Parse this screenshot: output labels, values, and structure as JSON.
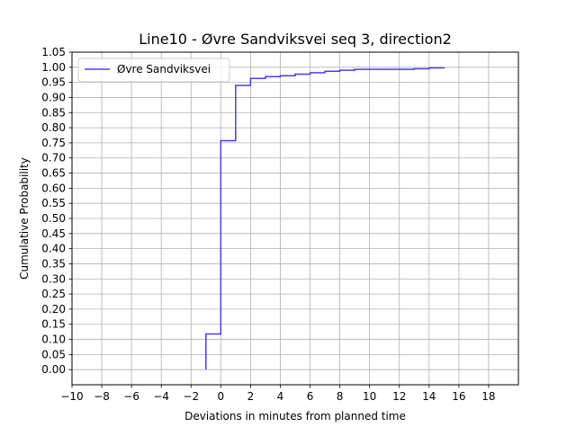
{
  "chart_data": {
    "type": "line",
    "title": "Line10 - Øvre Sandviksvei seq 3, direction2",
    "xlabel": "Deviations in minutes from planned time",
    "ylabel": "Cumulative Probability",
    "xlim": [
      -10,
      20
    ],
    "ylim": [
      -0.05,
      1.05
    ],
    "x_ticks": [
      -10,
      -8,
      -6,
      -4,
      -2,
      0,
      2,
      4,
      6,
      8,
      10,
      12,
      14,
      16,
      18
    ],
    "x_tick_labels": [
      "−10",
      "−8",
      "−6",
      "−4",
      "−2",
      "0",
      "2",
      "4",
      "6",
      "8",
      "10",
      "12",
      "14",
      "16",
      "18"
    ],
    "y_ticks": [
      0.0,
      0.05,
      0.1,
      0.15,
      0.2,
      0.25,
      0.3,
      0.35,
      0.4,
      0.45,
      0.5,
      0.55,
      0.6,
      0.65,
      0.7,
      0.75,
      0.8,
      0.85,
      0.9,
      0.95,
      1.0,
      1.05
    ],
    "y_tick_labels": [
      "0.00",
      "0.05",
      "0.10",
      "0.15",
      "0.20",
      "0.25",
      "0.30",
      "0.35",
      "0.40",
      "0.45",
      "0.50",
      "0.55",
      "0.60",
      "0.65",
      "0.70",
      "0.75",
      "0.80",
      "0.85",
      "0.90",
      "0.95",
      "1.00",
      "1.05"
    ],
    "grid": true,
    "legend_position": "top-left",
    "series": [
      {
        "name": "Øvre Sandviksvei",
        "color": "#4b3cf0",
        "step": "post",
        "x": [
          -1,
          -1,
          0,
          1,
          2,
          3,
          4,
          5,
          6,
          7,
          8,
          9,
          10,
          11,
          12,
          13,
          14,
          15
        ],
        "y": [
          0.0,
          0.118,
          0.757,
          0.94,
          0.963,
          0.969,
          0.972,
          0.977,
          0.982,
          0.987,
          0.99,
          0.993,
          0.993,
          0.993,
          0.993,
          0.995,
          0.998,
          1.0
        ]
      }
    ]
  }
}
